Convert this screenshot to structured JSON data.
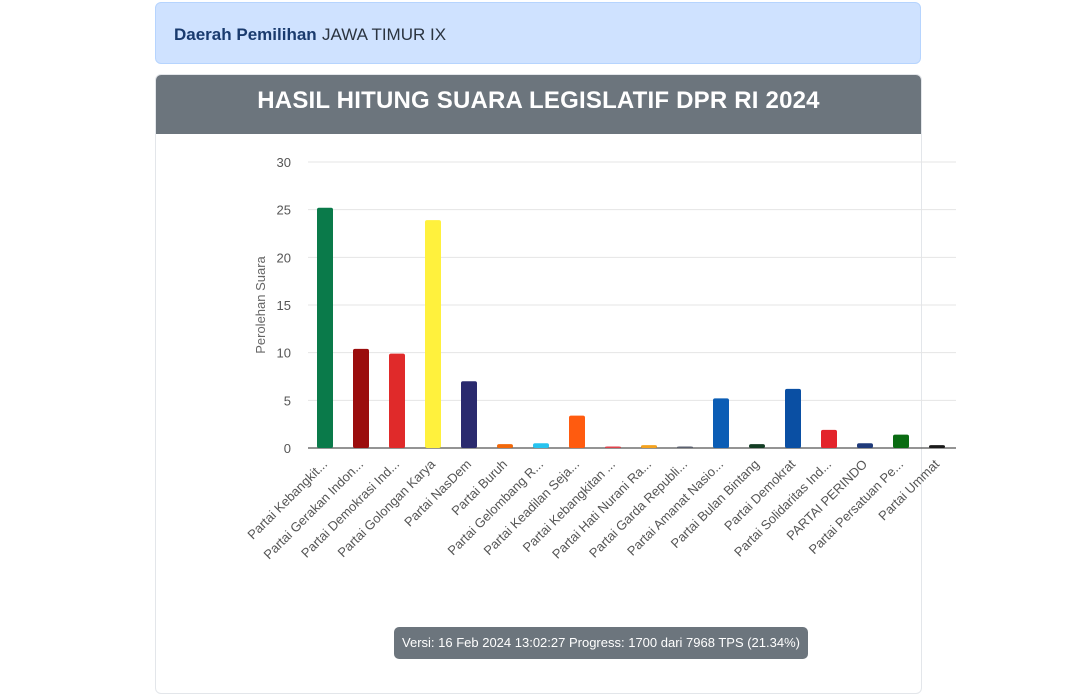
{
  "region": {
    "label": "Daerah Pemilihan",
    "value": "JAWA TIMUR IX"
  },
  "card": {
    "title": "HASIL HITUNG SUARA LEGISLATIF DPR RI 2024"
  },
  "version": {
    "text": "Versi: 16 Feb 2024 13:02:27 Progress: 1700 dari 7968 TPS (21.34%)"
  },
  "chart_data": {
    "type": "bar",
    "title": "",
    "xlabel": "",
    "ylabel": "Perolehan Suara",
    "ylim": [
      0,
      30
    ],
    "yticks": [
      0,
      5,
      10,
      15,
      20,
      25,
      30
    ],
    "grid": true,
    "categories": [
      "Partai Kebangkit...",
      "Partai Gerakan Indon...",
      "Partai Demokrasi Ind...",
      "Partai Golongan Karya",
      "Partai NasDem",
      "Partai Buruh",
      "Partai Gelombang R...",
      "Partai Keadilan Seja...",
      "Partai Kebangkitan ...",
      "Partai Hati Nurani Ra...",
      "Partai Garda Republi...",
      "Partai Amanat Nasio...",
      "Partai Bulan Bintang",
      "Partai Demokrat",
      "Partai Solidaritas Ind...",
      "PARTAI PERINDO",
      "Partai Persatuan Pe...",
      "Partai Ummat"
    ],
    "values": [
      25.2,
      10.4,
      9.9,
      23.9,
      7.0,
      0.4,
      0.5,
      3.4,
      0.1,
      0.3,
      0.1,
      5.2,
      0.4,
      6.2,
      1.9,
      0.5,
      1.4,
      0.3
    ],
    "colors": [
      "#0a7a4a",
      "#9b0d0d",
      "#e02a2a",
      "#fff13d",
      "#2a2a6e",
      "#f2680a",
      "#27c3ef",
      "#ff5b0f",
      "#e0414a",
      "#f4a21e",
      "#5a5f6e",
      "#0b5db5",
      "#133d24",
      "#0a4fa3",
      "#e3242b",
      "#1f3a7a",
      "#0a6b12",
      "#1a1a1a"
    ]
  }
}
